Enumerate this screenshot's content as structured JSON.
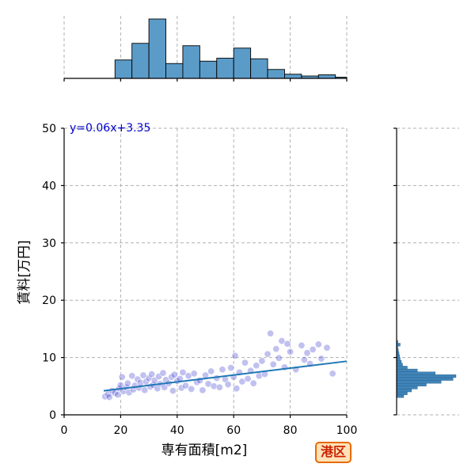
{
  "chart_data": {
    "type": "scatter",
    "xlabel": "専有面積[m2]",
    "ylabel": "賃料[万円]",
    "xlim": [
      0,
      100
    ],
    "ylim": [
      0,
      50
    ],
    "x_ticks": [
      0,
      20,
      40,
      60,
      80,
      100
    ],
    "y_ticks": [
      0,
      10,
      20,
      30,
      40,
      50
    ],
    "grid": true,
    "regression": {
      "slope": 0.06,
      "intercept": 3.35,
      "x_range": [
        14,
        100
      ],
      "label": "y=0.06x+3.35"
    },
    "marginal_x_histogram": {
      "bin_edges": [
        0,
        6,
        12,
        18,
        24,
        30,
        36,
        42,
        48,
        54,
        60,
        66,
        72,
        78,
        84,
        90,
        96,
        102
      ],
      "relative_heights": [
        0,
        0,
        0,
        0.31,
        0.59,
        1.0,
        0.25,
        0.55,
        0.29,
        0.34,
        0.51,
        0.33,
        0.15,
        0.07,
        0.04,
        0.06,
        0.02
      ]
    },
    "marginal_y_histogram": {
      "bin_edges": [
        3,
        3.5,
        4,
        4.5,
        5,
        5.5,
        6,
        6.5,
        7,
        7.5,
        8,
        8.5,
        9,
        9.5,
        10,
        10.5,
        11,
        11.5,
        12,
        12.5,
        13
      ],
      "relative_heights": [
        0.12,
        0.18,
        0.25,
        0.35,
        0.5,
        0.75,
        0.95,
        1.0,
        0.65,
        0.35,
        0.18,
        0.1,
        0.08,
        0.06,
        0.05,
        0.04,
        0.03,
        0.02,
        0.06,
        0.02
      ]
    },
    "points": [
      [
        14.5,
        3.2
      ],
      [
        15.5,
        3.6
      ],
      [
        16,
        3.1
      ],
      [
        17,
        4.2
      ],
      [
        18,
        3.8
      ],
      [
        19,
        3.5
      ],
      [
        19.5,
        4.6
      ],
      [
        20,
        5.2
      ],
      [
        20.5,
        6.6
      ],
      [
        21,
        4.1
      ],
      [
        22,
        4.8
      ],
      [
        22.5,
        5.5
      ],
      [
        23,
        3.9
      ],
      [
        24,
        6.8
      ],
      [
        24.5,
        4.4
      ],
      [
        25,
        5.1
      ],
      [
        26,
        6.2
      ],
      [
        26.5,
        4.7
      ],
      [
        27,
        5.6
      ],
      [
        28,
        6.9
      ],
      [
        28.5,
        4.3
      ],
      [
        29,
        5.8
      ],
      [
        30,
        6.4
      ],
      [
        30.5,
        4.9
      ],
      [
        31,
        7.1
      ],
      [
        31.5,
        5.2
      ],
      [
        32,
        6.0
      ],
      [
        33,
        4.6
      ],
      [
        33.5,
        6.7
      ],
      [
        34,
        5.4
      ],
      [
        35,
        7.3
      ],
      [
        35.5,
        4.8
      ],
      [
        36,
        6.1
      ],
      [
        37,
        5.5
      ],
      [
        38,
        6.6
      ],
      [
        38.5,
        4.2
      ],
      [
        39,
        7.0
      ],
      [
        40,
        5.9
      ],
      [
        41,
        6.3
      ],
      [
        41.5,
        4.7
      ],
      [
        42,
        7.4
      ],
      [
        43,
        5.1
      ],
      [
        44,
        6.8
      ],
      [
        45,
        4.5
      ],
      [
        46,
        7.2
      ],
      [
        47,
        5.7
      ],
      [
        48,
        6.0
      ],
      [
        49,
        4.3
      ],
      [
        50,
        6.9
      ],
      [
        51,
        5.4
      ],
      [
        52,
        7.6
      ],
      [
        53,
        5.0
      ],
      [
        54,
        6.4
      ],
      [
        55,
        4.8
      ],
      [
        56,
        7.9
      ],
      [
        57,
        6.2
      ],
      [
        58,
        5.3
      ],
      [
        59,
        8.2
      ],
      [
        60,
        6.6
      ],
      [
        60.5,
        10.3
      ],
      [
        61,
        4.6
      ],
      [
        62,
        7.4
      ],
      [
        63,
        5.8
      ],
      [
        64,
        9.1
      ],
      [
        65,
        6.3
      ],
      [
        66,
        7.7
      ],
      [
        67,
        5.5
      ],
      [
        68,
        8.6
      ],
      [
        69,
        6.8
      ],
      [
        70,
        9.4
      ],
      [
        71,
        7.1
      ],
      [
        72,
        10.6
      ],
      [
        73,
        14.2
      ],
      [
        74,
        8.8
      ],
      [
        75,
        11.5
      ],
      [
        76,
        9.9
      ],
      [
        77,
        12.9
      ],
      [
        78,
        8.3
      ],
      [
        79,
        12.4
      ],
      [
        80,
        11.0
      ],
      [
        82,
        7.9
      ],
      [
        84,
        12.1
      ],
      [
        85,
        9.6
      ],
      [
        86,
        10.8
      ],
      [
        87,
        8.9
      ],
      [
        88,
        11.4
      ],
      [
        90,
        12.3
      ],
      [
        91,
        9.8
      ],
      [
        93,
        11.7
      ],
      [
        95,
        7.2
      ]
    ]
  },
  "badge": {
    "text": "港区"
  }
}
